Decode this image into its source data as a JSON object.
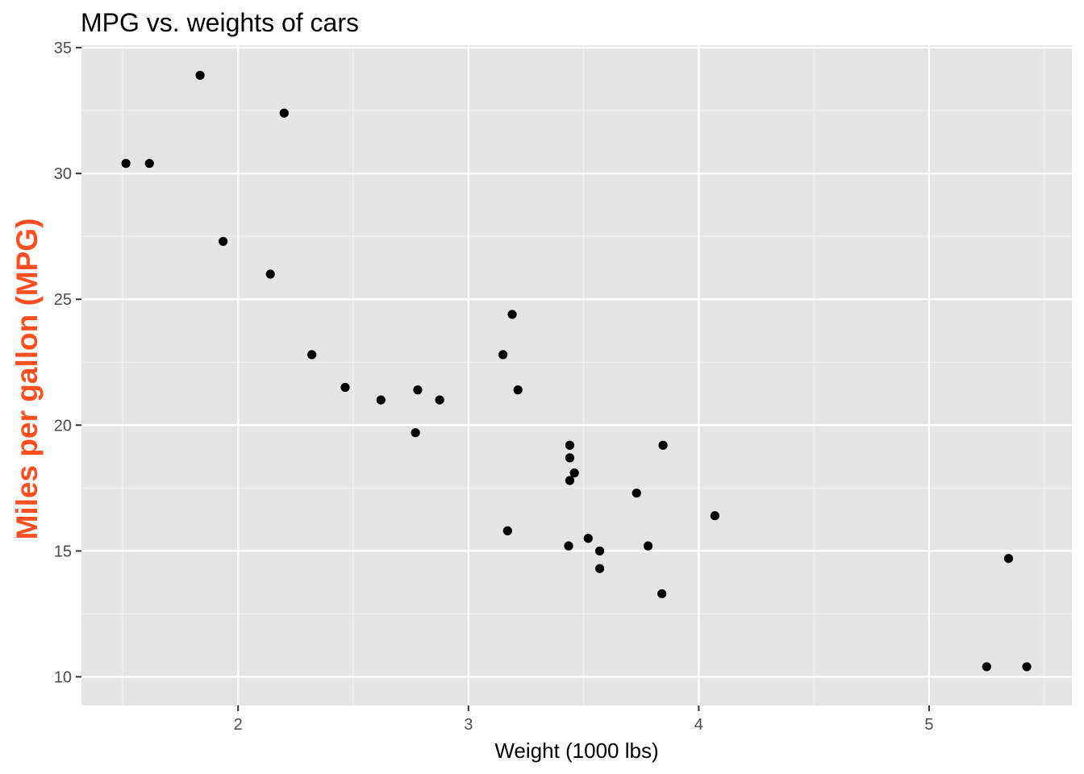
{
  "chart_data": {
    "type": "scatter",
    "title": "MPG vs. weights of cars",
    "xlabel": "Weight (1000 lbs)",
    "ylabel": "Miles per gallon (MPG)",
    "xlim": [
      1.32,
      5.62
    ],
    "ylim": [
      8.86,
      35.1
    ],
    "x_ticks": [
      2,
      3,
      4,
      5
    ],
    "x_tick_labels": [
      "2",
      "3",
      "4",
      "5"
    ],
    "y_ticks": [
      10,
      15,
      20,
      25,
      30,
      35
    ],
    "y_tick_labels": [
      "10",
      "15",
      "20",
      "25",
      "30",
      "35"
    ],
    "x_minor_ticks": [
      1.5,
      2.5,
      3.5,
      4.5,
      5.5
    ],
    "y_minor_ticks": [
      12.5,
      17.5,
      22.5,
      27.5,
      32.5
    ],
    "grid": true,
    "colors": {
      "panel_background": "#e5e5e5",
      "grid_major": "#ffffff",
      "grid_minor": "#f2f2f2",
      "point": "#000000",
      "ylabel": "#ff4e1f",
      "tick_text": "#4d4d4d",
      "tick_mark": "#333333"
    },
    "series": [
      {
        "points": [
          {
            "x": 2.62,
            "y": 21.0
          },
          {
            "x": 2.875,
            "y": 21.0
          },
          {
            "x": 2.32,
            "y": 22.8
          },
          {
            "x": 3.215,
            "y": 21.4
          },
          {
            "x": 3.44,
            "y": 18.7
          },
          {
            "x": 3.46,
            "y": 18.1
          },
          {
            "x": 3.57,
            "y": 14.3
          },
          {
            "x": 3.19,
            "y": 24.4
          },
          {
            "x": 3.15,
            "y": 22.8
          },
          {
            "x": 3.44,
            "y": 19.2
          },
          {
            "x": 3.44,
            "y": 17.8
          },
          {
            "x": 4.07,
            "y": 16.4
          },
          {
            "x": 3.73,
            "y": 17.3
          },
          {
            "x": 3.78,
            "y": 15.2
          },
          {
            "x": 5.25,
            "y": 10.4
          },
          {
            "x": 5.424,
            "y": 10.4
          },
          {
            "x": 5.345,
            "y": 14.7
          },
          {
            "x": 2.2,
            "y": 32.4
          },
          {
            "x": 1.615,
            "y": 30.4
          },
          {
            "x": 1.835,
            "y": 33.9
          },
          {
            "x": 2.465,
            "y": 21.5
          },
          {
            "x": 3.52,
            "y": 15.5
          },
          {
            "x": 3.435,
            "y": 15.2
          },
          {
            "x": 3.84,
            "y": 13.3
          },
          {
            "x": 3.845,
            "y": 19.2
          },
          {
            "x": 1.935,
            "y": 27.3
          },
          {
            "x": 2.14,
            "y": 26.0
          },
          {
            "x": 1.513,
            "y": 30.4
          },
          {
            "x": 3.17,
            "y": 15.8
          },
          {
            "x": 2.77,
            "y": 19.7
          },
          {
            "x": 3.57,
            "y": 15.0
          },
          {
            "x": 2.78,
            "y": 21.4
          }
        ]
      }
    ]
  }
}
